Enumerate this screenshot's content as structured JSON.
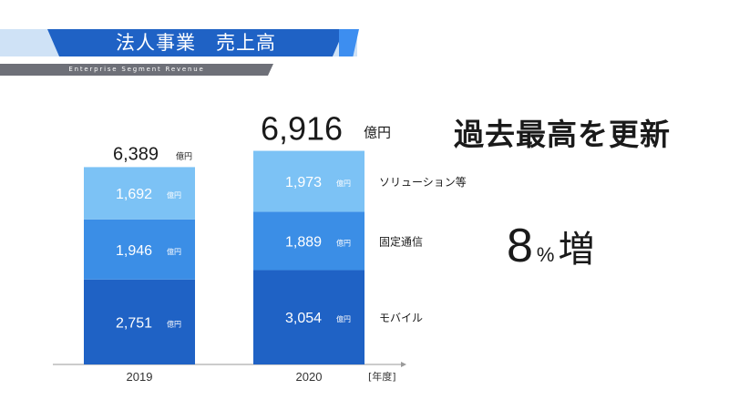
{
  "header": {
    "title": "法人事業　売上高",
    "subtitle": "Enterprise Segment Revenue"
  },
  "headline": "過去最高を更新",
  "growth": {
    "value": "8",
    "unit": "%",
    "word": "増"
  },
  "chart_data": {
    "type": "bar",
    "stacked": true,
    "categories": [
      "2019",
      "2020"
    ],
    "x_unit": "[年度]",
    "value_unit": "億円",
    "series": [
      {
        "name": "モバイル",
        "values": [
          2751,
          3054
        ],
        "labels": [
          "2,751",
          "3,054"
        ],
        "color": "#1f62c5"
      },
      {
        "name": "固定通信",
        "values": [
          1946,
          1889
        ],
        "labels": [
          "1,946",
          "1,889"
        ],
        "color": "#3b8ee6"
      },
      {
        "name": "ソリューション等",
        "values": [
          1692,
          1973
        ],
        "labels": [
          "1,692",
          "1,973"
        ],
        "color": "#7cc2f5"
      }
    ],
    "totals": [
      6389,
      6916
    ],
    "total_labels": [
      "6,389",
      "6,916"
    ],
    "ylim": [
      0,
      7000
    ],
    "grid": false,
    "legend_placement": "right"
  }
}
